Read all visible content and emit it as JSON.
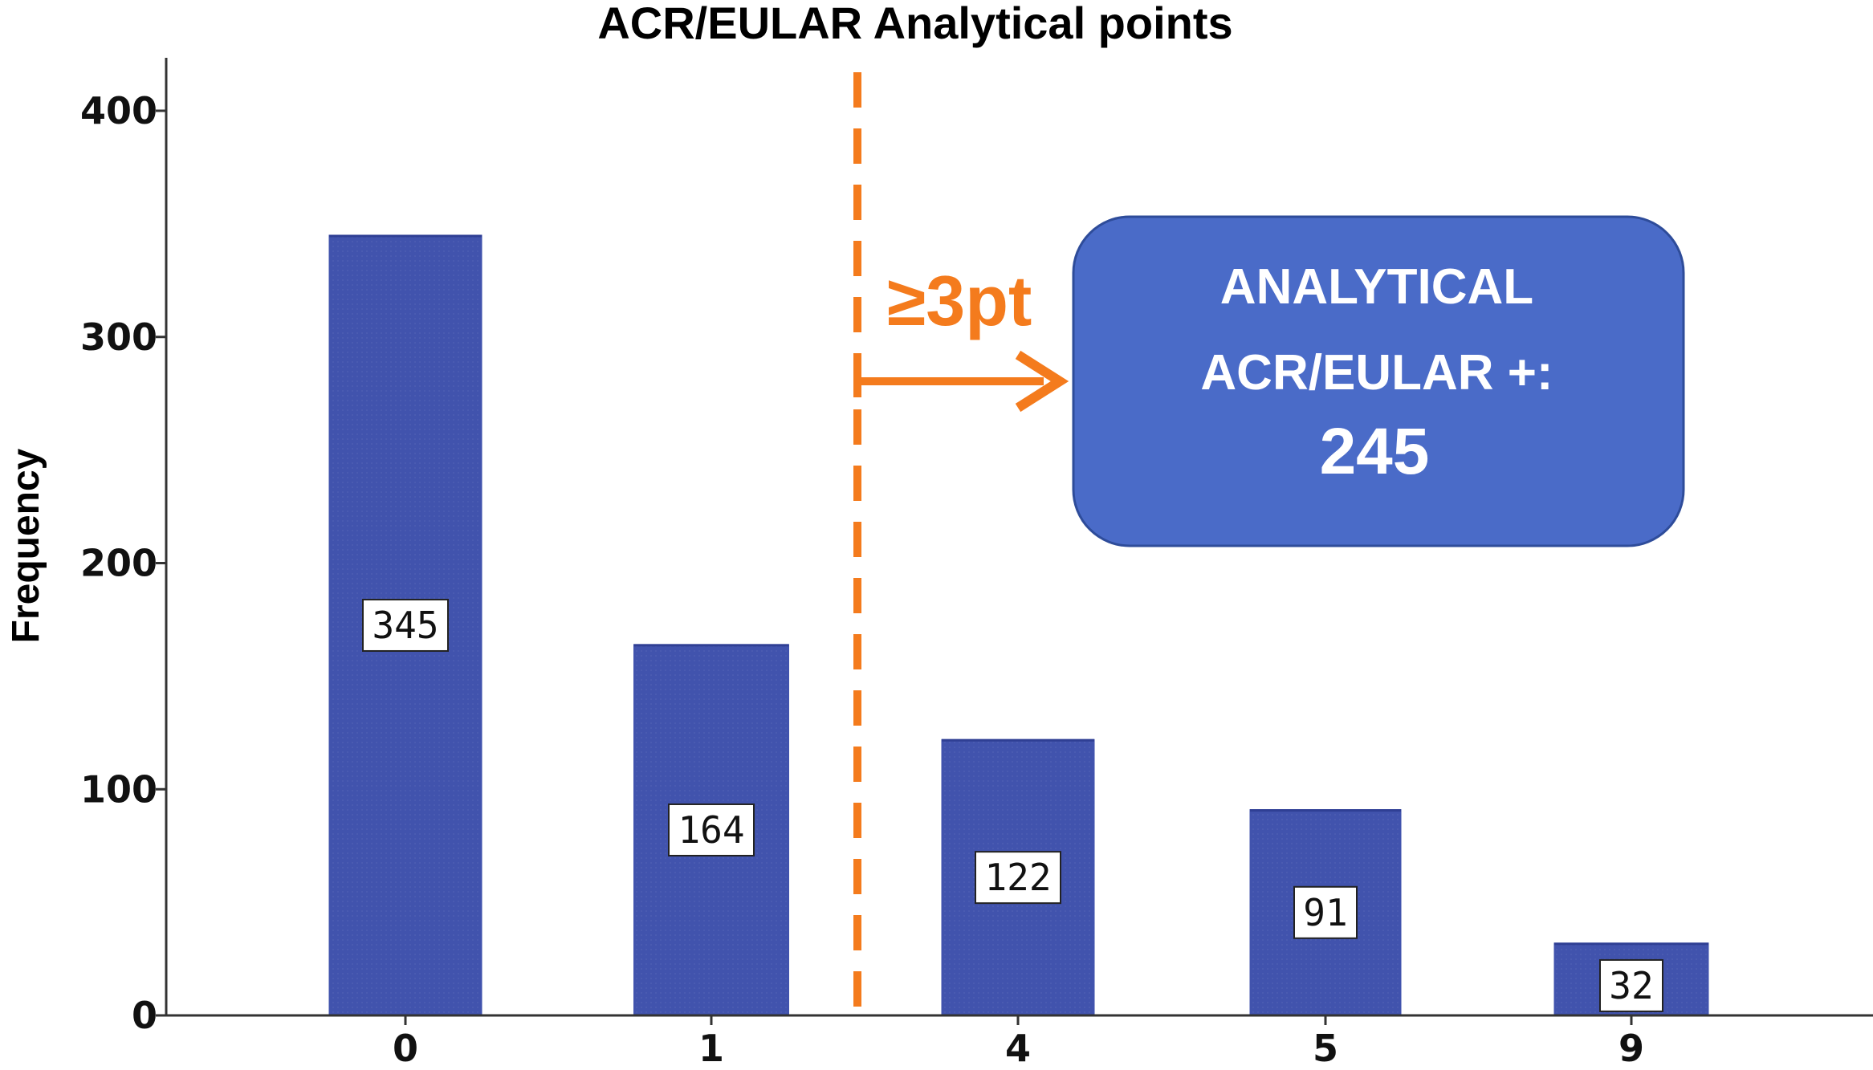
{
  "chart_data": {
    "type": "bar",
    "title": "ACR/EULAR Analytical points",
    "xlabel": "",
    "ylabel": "Frequency",
    "categories": [
      "0",
      "1",
      "4",
      "5",
      "9"
    ],
    "values": [
      345,
      164,
      122,
      91,
      32
    ],
    "data_labels": [
      "345",
      "164",
      "122",
      "91",
      "32"
    ],
    "ylim": [
      0,
      420
    ],
    "yticks": [
      0,
      100,
      200,
      300,
      400
    ],
    "grid": false,
    "legend": "none",
    "bar_color": "#4153ad",
    "threshold": {
      "label": "≥3pt",
      "color": "#f47b1d"
    },
    "callout": {
      "line1": "ANALYTICAL",
      "line2": "ACR/EULAR +:",
      "value": "245",
      "color": "#4a6bc8"
    }
  }
}
